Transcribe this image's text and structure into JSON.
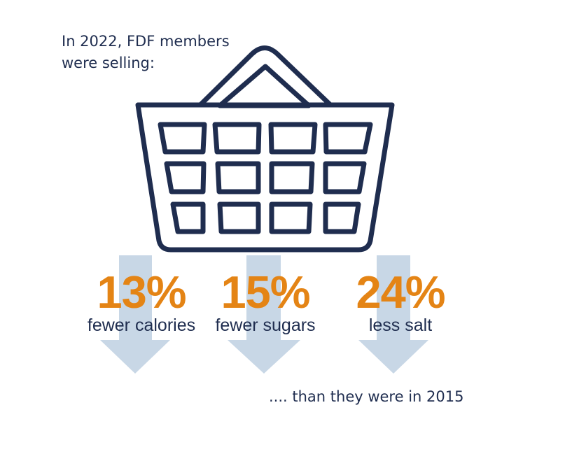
{
  "intro": {
    "line1": "In 2022, FDF members",
    "line2": "were selling:"
  },
  "icon": {
    "name": "shopping-basket-icon",
    "stroke": "#1f2d4f"
  },
  "arrow_color": "#c8d7e6",
  "accent_color": "#e48415",
  "stats": [
    {
      "value": "13%",
      "label": "fewer calories"
    },
    {
      "value": "15%",
      "label": "fewer sugars"
    },
    {
      "value": "24%",
      "label": "less salt"
    }
  ],
  "footnote": ".... than they were in 2015"
}
